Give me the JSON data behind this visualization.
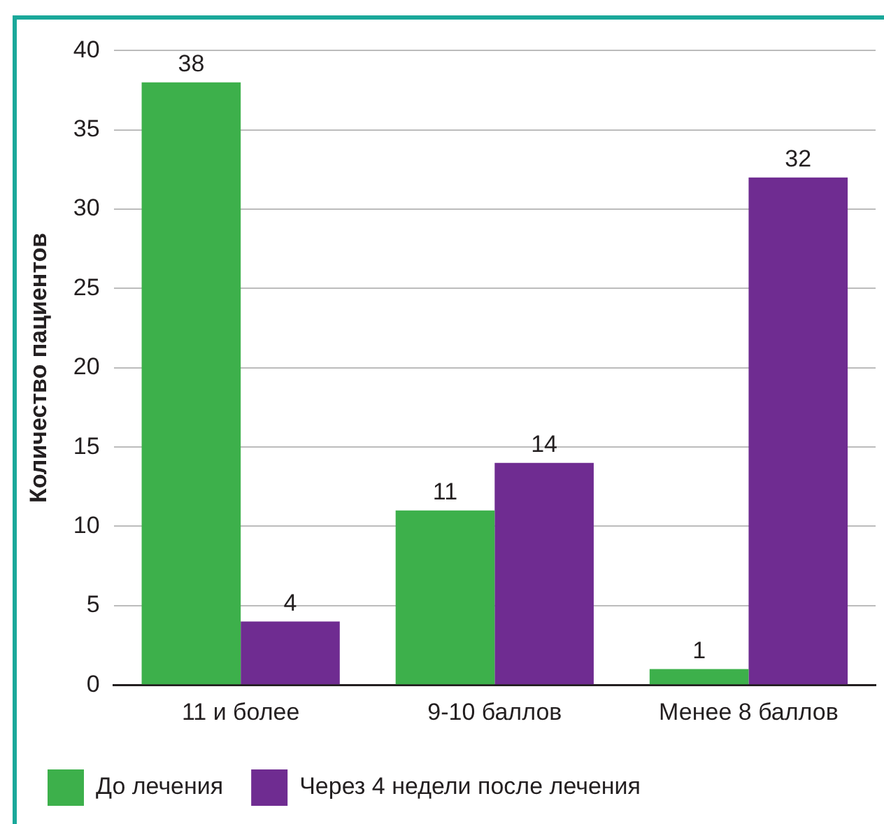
{
  "chart_data": {
    "type": "bar",
    "ylabel": "Количество пациентов",
    "categories": [
      "11 и более",
      "9-10 баллов",
      "Менее 8 баллов"
    ],
    "series": [
      {
        "name": "До лечения",
        "color": "#3db04b",
        "values": [
          38,
          11,
          1
        ]
      },
      {
        "name": "Через 4 недели после лечения",
        "color": "#6f2c91",
        "values": [
          4,
          14,
          32
        ]
      }
    ],
    "ylim": [
      0,
      40
    ],
    "yticks": [
      0,
      5,
      10,
      15,
      20,
      25,
      30,
      35,
      40
    ],
    "grid": "y",
    "legend": "bottom",
    "data_labels": true
  }
}
